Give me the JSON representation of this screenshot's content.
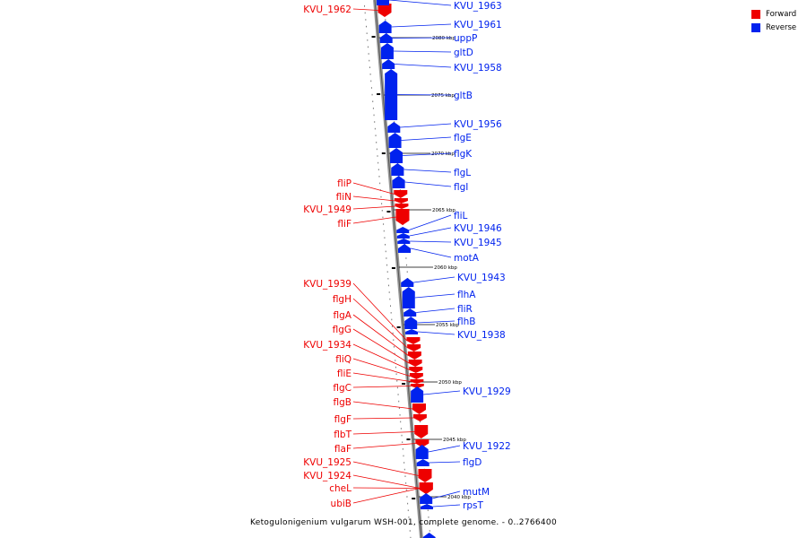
{
  "legend": {
    "forward": {
      "label": "Forward",
      "color": "#ee0000"
    },
    "reverse": {
      "label": "Reverse",
      "color": "#0022ee"
    }
  },
  "caption": "Ketogulonigenium vulgarum WSH-001, complete genome. - 0..2766400",
  "ticks": [
    "2080 kbp",
    "2075 kbp",
    "2070 kbp",
    "2065 kbp",
    "2060 kbp",
    "2055 kbp",
    "2050 kbp",
    "2045 kbp",
    "2040 kbp"
  ],
  "forward_genes": [
    "KVU_1962",
    "fliP",
    "fliN",
    "KVU_1949",
    "fliF",
    "KVU_1939",
    "flgH",
    "flgA",
    "flgG",
    "KVU_1934",
    "fliQ",
    "fliE",
    "flgC",
    "flgB",
    "flgF",
    "flbT",
    "flaF",
    "KVU_1925",
    "KVU_1924",
    "cheL",
    "ubiB"
  ],
  "reverse_genes": [
    "KVU_1963",
    "KVU_1961",
    "uppP",
    "gltD",
    "KVU_1958",
    "gltB",
    "KVU_1956",
    "flgE",
    "flgK",
    "flgL",
    "flgI",
    "fliL",
    "KVU_1946",
    "KVU_1945",
    "motA",
    "KVU_1943",
    "flhA",
    "fliR",
    "flhB",
    "KVU_1938",
    "KVU_1929",
    "KVU_1922",
    "flgD",
    "mutM",
    "rpsT"
  ]
}
